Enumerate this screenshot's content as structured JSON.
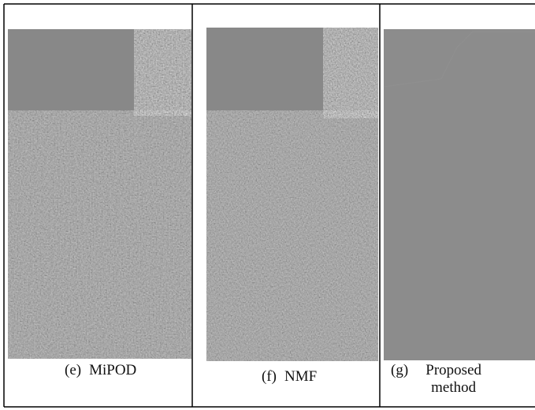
{
  "panels": [
    {
      "label": "(e)",
      "caption": "MiPOD"
    },
    {
      "label": "(f)",
      "caption": "NMF"
    },
    {
      "label": "(g)",
      "caption": "Proposed method"
    }
  ]
}
